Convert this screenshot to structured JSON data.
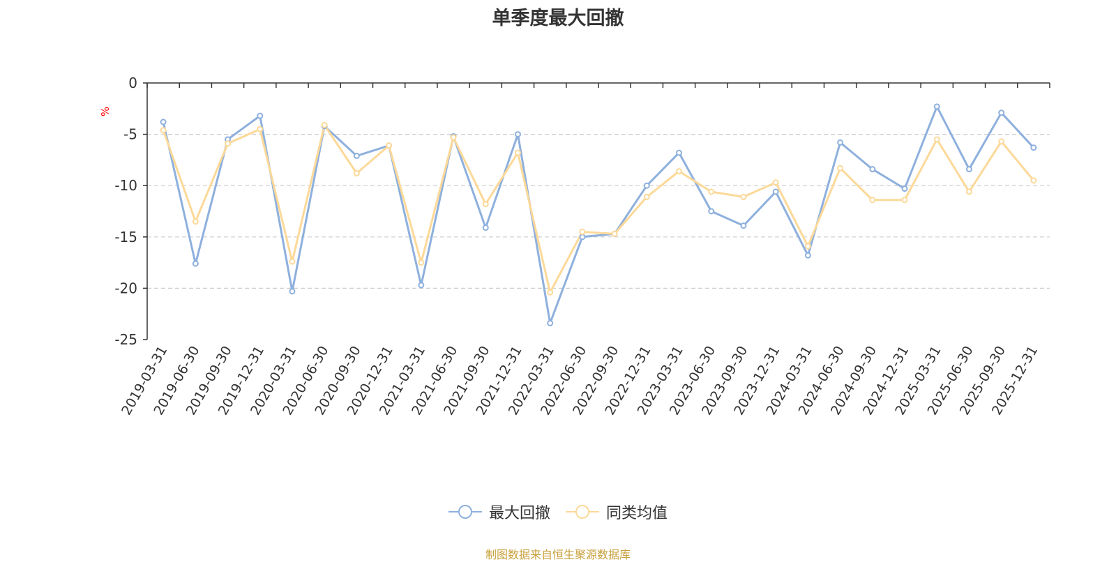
{
  "title": "单季度最大回撤",
  "source": "制图数据来自恒生聚源数据库",
  "colors": {
    "series1": "#8eb0dd",
    "series2": "#fcd999",
    "unit": "#ff0000",
    "source": "#c8a03c",
    "grid": "#cccccc",
    "axis": "#333333"
  },
  "chart_data": {
    "type": "line",
    "ylabel": "%",
    "ylim": [
      -25,
      0
    ],
    "yticks": [
      0,
      -5,
      -10,
      -15,
      -20,
      -25
    ],
    "grid": "dashed-horizontal",
    "legend_position": "bottom-center",
    "categories": [
      "2019-03-31",
      "2019-06-30",
      "2019-09-30",
      "2019-12-31",
      "2020-03-31",
      "2020-06-30",
      "2020-09-30",
      "2020-12-31",
      "2021-03-31",
      "2021-06-30",
      "2021-09-30",
      "2021-12-31",
      "2022-03-31",
      "2022-06-30",
      "2022-09-30",
      "2022-12-31",
      "2023-03-31",
      "2023-06-30",
      "2023-09-30",
      "2023-12-31",
      "2024-03-31",
      "2024-06-30",
      "2024-09-30",
      "2024-12-31",
      "2025-03-31",
      "2025-06-30",
      "2025-09-30",
      "2025-12-31"
    ],
    "series": [
      {
        "name": "最大回撤",
        "color": "#8eb0dd",
        "values": [
          -3.8,
          -17.6,
          -5.5,
          -3.2,
          -20.3,
          -4.2,
          -7.1,
          -6.1,
          -19.7,
          -5.2,
          -14.1,
          -5.0,
          -23.4,
          -15.0,
          -14.7,
          -10.0,
          -6.8,
          -12.5,
          -13.9,
          -10.6,
          -16.8,
          -5.8,
          -8.4,
          -10.3,
          -2.3,
          -8.4,
          -2.9,
          -6.3
        ]
      },
      {
        "name": "同类均值",
        "color": "#fcd999",
        "values": [
          -4.6,
          -13.5,
          -5.9,
          -4.5,
          -17.4,
          -4.1,
          -8.8,
          -6.1,
          -17.5,
          -5.3,
          -11.8,
          -6.8,
          -20.4,
          -14.5,
          -14.7,
          -11.1,
          -8.6,
          -10.6,
          -11.1,
          -9.7,
          -15.9,
          -8.3,
          -11.4,
          -11.4,
          -5.5,
          -10.6,
          -5.7,
          -9.5
        ]
      }
    ]
  }
}
